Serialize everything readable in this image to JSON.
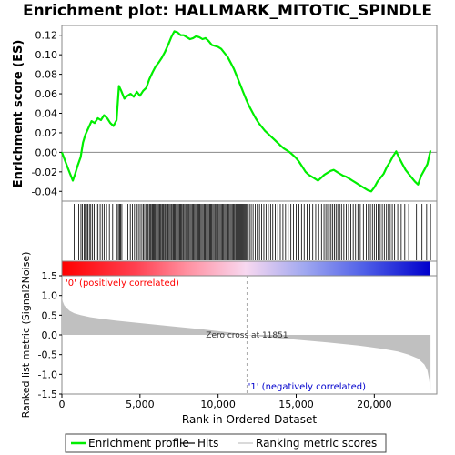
{
  "chart_data": {
    "type": "line",
    "title": "Enrichment plot: HALLMARK_MITOTIC_SPINDLE",
    "xlabel": "Rank in Ordered Dataset",
    "xlim": [
      0,
      24000
    ],
    "x_ticks": [
      0,
      5000,
      10000,
      15000,
      20000
    ],
    "x_tick_labels": [
      "0",
      "5,000",
      "10,000",
      "15,000",
      "20,000"
    ],
    "es_panel": {
      "ylabel": "Enrichment score (ES)",
      "ylim": [
        -0.05,
        0.13
      ],
      "y_ticks": [
        -0.04,
        -0.02,
        0.0,
        0.02,
        0.04,
        0.06,
        0.08,
        0.1,
        0.12
      ],
      "y_tick_labels": [
        "-0.04",
        "-0.02",
        "0.00",
        "0.02",
        "0.04",
        "0.06",
        "0.08",
        "0.10",
        "0.12"
      ],
      "series": [
        {
          "name": "Enrichment profile",
          "color": "#00ee00",
          "x": [
            0,
            400,
            700,
            850,
            1000,
            1200,
            1350,
            1500,
            1700,
            1900,
            2100,
            2300,
            2500,
            2700,
            2900,
            3100,
            3300,
            3500,
            3650,
            3800,
            4000,
            4200,
            4400,
            4600,
            4800,
            5000,
            5200,
            5400,
            5600,
            5800,
            6000,
            6200,
            6400,
            6600,
            6800,
            7000,
            7200,
            7400,
            7600,
            7800,
            8000,
            8200,
            8400,
            8600,
            8800,
            9000,
            9200,
            9400,
            9600,
            9800,
            10000,
            10200,
            10400,
            10600,
            10800,
            11000,
            11200,
            11400,
            11600,
            11800,
            12000,
            12200,
            12400,
            12600,
            12800,
            13000,
            13200,
            13400,
            13600,
            13800,
            14000,
            14200,
            14400,
            14600,
            14800,
            15000,
            15200,
            15400,
            15600,
            15800,
            16000,
            16200,
            16400,
            16600,
            16800,
            17000,
            17200,
            17400,
            17600,
            17800,
            18000,
            18200,
            18400,
            18600,
            18800,
            19000,
            19200,
            19400,
            19600,
            19800,
            20000,
            20200,
            20400,
            20600,
            20800,
            21000,
            21200,
            21400,
            21600,
            21800,
            22000,
            22200,
            22400,
            22600,
            22800,
            23000,
            23200,
            23400,
            23600
          ],
          "y": [
            0.0,
            -0.017,
            -0.029,
            -0.022,
            -0.014,
            -0.005,
            0.01,
            0.018,
            0.025,
            0.032,
            0.03,
            0.035,
            0.033,
            0.038,
            0.035,
            0.03,
            0.027,
            0.033,
            0.068,
            0.063,
            0.055,
            0.058,
            0.06,
            0.057,
            0.062,
            0.058,
            0.063,
            0.066,
            0.075,
            0.082,
            0.088,
            0.092,
            0.097,
            0.103,
            0.11,
            0.118,
            0.124,
            0.123,
            0.12,
            0.12,
            0.118,
            0.116,
            0.117,
            0.119,
            0.118,
            0.116,
            0.117,
            0.114,
            0.11,
            0.109,
            0.108,
            0.106,
            0.102,
            0.098,
            0.092,
            0.086,
            0.078,
            0.07,
            0.062,
            0.054,
            0.047,
            0.041,
            0.035,
            0.03,
            0.026,
            0.022,
            0.019,
            0.016,
            0.013,
            0.01,
            0.007,
            0.004,
            0.002,
            0.0,
            -0.003,
            -0.006,
            -0.01,
            -0.015,
            -0.02,
            -0.023,
            -0.025,
            -0.027,
            -0.029,
            -0.026,
            -0.023,
            -0.021,
            -0.019,
            -0.018,
            -0.02,
            -0.022,
            -0.024,
            -0.025,
            -0.027,
            -0.029,
            -0.031,
            -0.033,
            -0.035,
            -0.037,
            -0.039,
            -0.04,
            -0.036,
            -0.03,
            -0.026,
            -0.022,
            -0.015,
            -0.01,
            -0.004,
            0.001,
            -0.006,
            -0.012,
            -0.018,
            -0.022,
            -0.026,
            -0.03,
            -0.033,
            -0.024,
            -0.018,
            -0.012,
            0.002
          ]
        }
      ]
    },
    "hits_panel": {
      "legend_name": "Hits",
      "hit_ranks": [
        780,
        900,
        1080,
        1220,
        1310,
        1420,
        1500,
        1580,
        1660,
        1760,
        1850,
        1960,
        2070,
        2200,
        2310,
        2450,
        2580,
        2700,
        2860,
        3040,
        3250,
        3470,
        3540,
        3620,
        3700,
        3760,
        3840,
        4100,
        4230,
        4380,
        4520,
        4650,
        4790,
        4900,
        5010,
        5120,
        5210,
        5300,
        5400,
        5460,
        5520,
        5600,
        5660,
        5720,
        5790,
        5850,
        5920,
        5980,
        6050,
        6120,
        6190,
        6260,
        6330,
        6400,
        6460,
        6520,
        6590,
        6650,
        6720,
        6790,
        6860,
        6930,
        7000,
        7060,
        7130,
        7200,
        7260,
        7330,
        7400,
        7470,
        7540,
        7600,
        7670,
        7740,
        7800,
        7870,
        7940,
        8010,
        8080,
        8140,
        8210,
        8280,
        8350,
        8420,
        8490,
        8560,
        8630,
        8700,
        8760,
        8830,
        8900,
        8970,
        9040,
        9110,
        9180,
        9250,
        9320,
        9390,
        9460,
        9520,
        9590,
        9660,
        9730,
        9800,
        9860,
        9930,
        10000,
        10070,
        10140,
        10210,
        10280,
        10350,
        10420,
        10490,
        10560,
        10630,
        10700,
        10770,
        10840,
        10910,
        10980,
        11050,
        11120,
        11180,
        11240,
        11300,
        11360,
        11420,
        11480,
        11540,
        11600,
        11660,
        11720,
        11780,
        11840,
        11920,
        12010,
        12120,
        12240,
        12380,
        12510,
        12650,
        12790,
        12930,
        13070,
        13220,
        13360,
        13500,
        13660,
        13820,
        13980,
        14150,
        14320,
        14490,
        14660,
        14830,
        15000,
        15170,
        15340,
        15510,
        15700,
        15870,
        16060,
        16250,
        16440,
        16620,
        16780,
        16900,
        17010,
        17120,
        17230,
        17340,
        17440,
        17550,
        17660,
        17780,
        17900,
        18050,
        18200,
        18350,
        18500,
        18650,
        18800,
        18950,
        19100,
        19300,
        19480,
        19620,
        19750,
        19880,
        20000,
        20120,
        20250,
        20380,
        20510,
        20640,
        20780,
        20900,
        21020,
        21150,
        21300,
        21500,
        21720,
        21950,
        22200,
        22700,
        23050,
        23350,
        23600
      ]
    },
    "metric_panel": {
      "ylabel": "Ranked list metric (Signal2Noise)",
      "legend_name": "Ranking metric scores",
      "ylim": [
        -1.5,
        1.5
      ],
      "y_ticks": [
        -1.5,
        -1.0,
        -0.5,
        0.0,
        0.5,
        1.0,
        1.5
      ],
      "y_tick_labels": [
        "-1.5",
        "-1.0",
        "-0.5",
        "0.0",
        "0.5",
        "1.0",
        "1.5"
      ],
      "x": [
        0,
        50,
        150,
        300,
        500,
        800,
        1200,
        1800,
        2500,
        3500,
        5000,
        7000,
        9000,
        11000,
        11851,
        13000,
        15000,
        17000,
        19000,
        20500,
        21500,
        22200,
        22800,
        23200,
        23400,
        23500,
        23600
      ],
      "y": [
        1.0,
        0.85,
        0.75,
        0.68,
        0.61,
        0.55,
        0.5,
        0.45,
        0.41,
        0.36,
        0.3,
        0.22,
        0.14,
        0.05,
        0.0,
        -0.05,
        -0.12,
        -0.19,
        -0.27,
        -0.35,
        -0.42,
        -0.5,
        -0.6,
        -0.75,
        -0.9,
        -1.1,
        -1.4
      ],
      "annotations": {
        "positive": "'0' (positively correlated)",
        "negative": "'1' (negatively correlated)",
        "zero_cross": "Zero cross at 11851"
      },
      "zero_cross_x": 11851
    },
    "legend": [
      {
        "name": "Enrichment profile",
        "color": "#00ee00"
      },
      {
        "name": "Hits",
        "color": "#000000"
      },
      {
        "name": "Ranking metric scores",
        "color": "#c0c0c0"
      }
    ],
    "colors": {
      "positive_label": "#ff0000",
      "negative_label": "#0000cc",
      "metric_fill": "#c0c0c0",
      "hit_line": "#000000"
    }
  }
}
